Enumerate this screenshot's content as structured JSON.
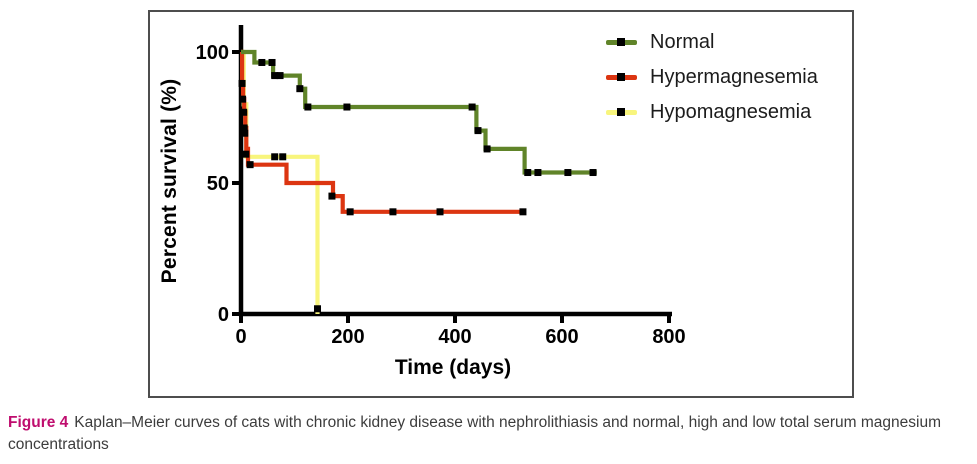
{
  "figure": {
    "caption_label": "Figure 4",
    "caption_text": "Kaplan–Meier curves of cats with chronic kidney disease with nephrolithiasis and normal, high and low total serum magnesium concentrations",
    "caption_label_color": "#bf0d6e",
    "caption_text_color": "#3c3c3c",
    "frame_border_color": "#4d4d4d"
  },
  "chart_data": {
    "type": "line",
    "subtype": "kaplan-meier-step",
    "title": "",
    "xlabel": "Time (days)",
    "ylabel": "Percent survival (%)",
    "xlim": [
      0,
      800
    ],
    "ylim": [
      0,
      100
    ],
    "xticks": [
      0,
      200,
      400,
      600,
      800
    ],
    "yticks": [
      0,
      50,
      100
    ],
    "grid": false,
    "legend_position": "top-right",
    "axis_color": "#000000",
    "censor_marker_color": "#000000",
    "series": [
      {
        "name": "Normal",
        "color": "#608429",
        "points": [
          [
            0,
            100
          ],
          [
            25,
            100
          ],
          [
            25,
            96
          ],
          [
            60,
            96
          ],
          [
            60,
            91
          ],
          [
            110,
            91
          ],
          [
            110,
            86
          ],
          [
            120,
            86
          ],
          [
            120,
            79
          ],
          [
            440,
            79
          ],
          [
            440,
            70
          ],
          [
            457,
            70
          ],
          [
            457,
            63
          ],
          [
            530,
            63
          ],
          [
            530,
            54
          ],
          [
            665,
            54
          ]
        ],
        "censor_marks": [
          [
            39,
            96
          ],
          [
            58,
            96
          ],
          [
            63,
            91
          ],
          [
            73,
            91
          ],
          [
            110,
            86
          ],
          [
            125,
            79
          ],
          [
            198,
            79
          ],
          [
            432,
            79
          ],
          [
            443,
            70
          ],
          [
            460,
            63
          ],
          [
            536,
            54
          ],
          [
            555,
            54
          ],
          [
            611,
            54
          ],
          [
            658,
            54
          ]
        ]
      },
      {
        "name": "Hypermagnesemia",
        "color": "#dc3511",
        "points": [
          [
            0,
            100
          ],
          [
            2,
            100
          ],
          [
            2,
            88
          ],
          [
            4,
            88
          ],
          [
            4,
            82
          ],
          [
            6,
            82
          ],
          [
            6,
            77
          ],
          [
            8,
            77
          ],
          [
            8,
            71
          ],
          [
            10,
            71
          ],
          [
            10,
            63
          ],
          [
            13,
            63
          ],
          [
            13,
            57
          ],
          [
            85,
            57
          ],
          [
            85,
            50
          ],
          [
            172,
            50
          ],
          [
            172,
            45
          ],
          [
            190,
            45
          ],
          [
            190,
            39
          ],
          [
            527,
            39
          ]
        ],
        "censor_marks": [
          [
            2,
            88
          ],
          [
            3,
            82
          ],
          [
            5,
            77
          ],
          [
            6,
            71
          ],
          [
            7,
            69
          ],
          [
            9,
            61
          ],
          [
            17,
            57
          ],
          [
            170,
            45
          ],
          [
            204,
            39
          ],
          [
            284,
            39
          ],
          [
            372,
            39
          ],
          [
            527,
            39
          ]
        ]
      },
      {
        "name": "Hypomagnesemia",
        "color": "#f8f57d",
        "points": [
          [
            0,
            100
          ],
          [
            5,
            100
          ],
          [
            5,
            80
          ],
          [
            10,
            80
          ],
          [
            10,
            60
          ],
          [
            143,
            60
          ],
          [
            143,
            0
          ]
        ],
        "censor_marks": [
          [
            63,
            60
          ],
          [
            78,
            60
          ],
          [
            143,
            2
          ]
        ]
      }
    ]
  }
}
